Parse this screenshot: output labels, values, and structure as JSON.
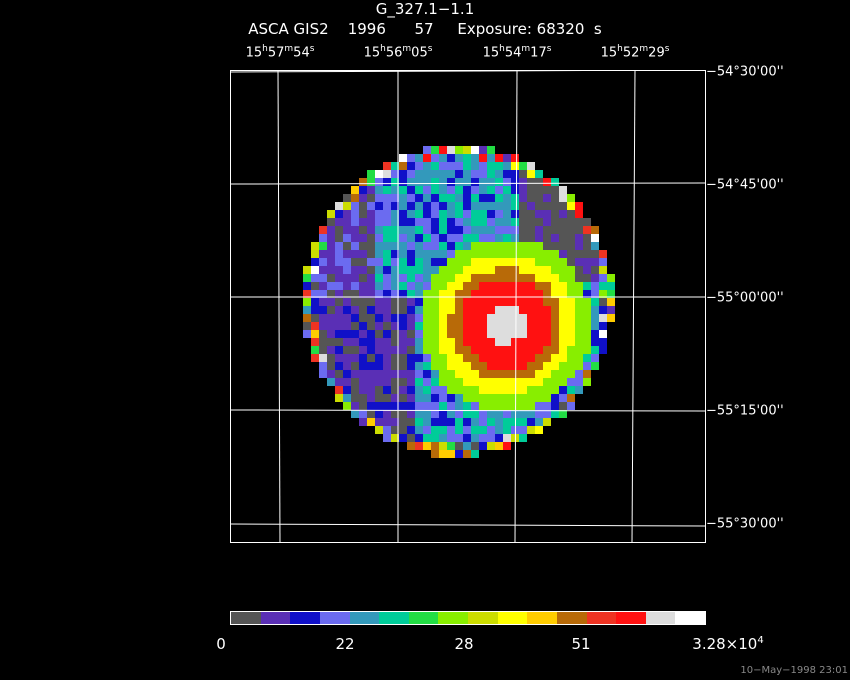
{
  "header": {
    "title": "G_327.1−1.1",
    "subtitle": "ASCA GIS2    1996      57     Exposure: 68320  s"
  },
  "ra_labels": [
    {
      "h": "15",
      "m": "57",
      "s": "54"
    },
    {
      "h": "15",
      "m": "56",
      "s": "05"
    },
    {
      "h": "15",
      "m": "54",
      "s": "17"
    },
    {
      "h": "15",
      "m": "52",
      "s": "29"
    }
  ],
  "dec_labels": [
    "−54°30'00''",
    "−54°45'00''",
    "−55°00'00''",
    "−55°15'00''",
    "−55°30'00''"
  ],
  "colorbar": {
    "colors": [
      "#555555",
      "#5a2fb5",
      "#1010c8",
      "#6b6bf0",
      "#3399bb",
      "#00cc99",
      "#22dd44",
      "#88ee00",
      "#ccdd00",
      "#ffff00",
      "#ffcc00",
      "#b86a08",
      "#ee3322",
      "#ff1111",
      "#dddddd",
      "#ffffff"
    ],
    "labels": [
      "0",
      "22",
      "28",
      "51",
      "3.28×10",
      "4"
    ]
  },
  "image": {
    "description_colormap_levels": 16,
    "peak_level": 13
  },
  "timestamp": "10−May−1998 23:01"
}
